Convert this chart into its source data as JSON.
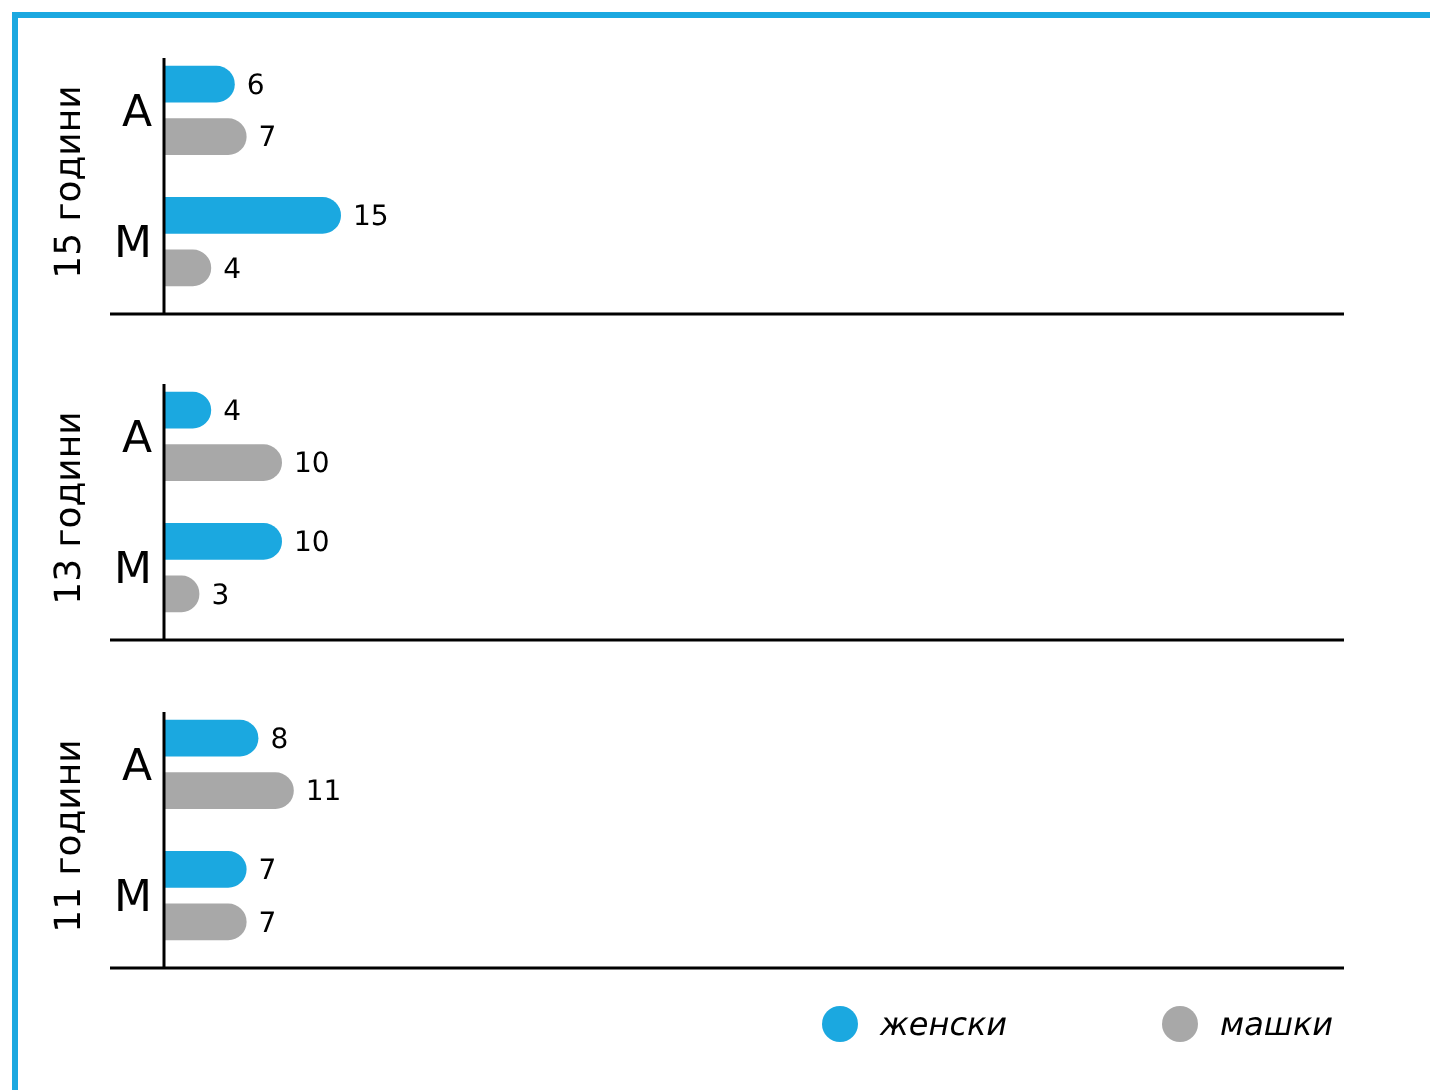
{
  "chart_data": [
    {
      "type": "bar",
      "orientation": "horizontal",
      "ylabel": "15 години",
      "categories": [
        "A",
        "M"
      ],
      "xlim": [
        0,
        100
      ],
      "tick_labels": "y",
      "data_labels": true,
      "legend": false,
      "series": [
        {
          "color": "#1ba8e0",
          "values": [
            6,
            15
          ]
        },
        {
          "color": "#a8a8a8",
          "values": [
            7,
            4
          ]
        }
      ]
    },
    {
      "type": "bar",
      "orientation": "horizontal",
      "ylabel": "13 години",
      "categories": [
        "A",
        "M"
      ],
      "xlim": [
        0,
        100
      ],
      "tick_labels": "y",
      "data_labels": true,
      "legend": false,
      "series": [
        {
          "color": "#1ba8e0",
          "values": [
            4,
            10
          ]
        },
        {
          "color": "#a8a8a8",
          "values": [
            10,
            3
          ]
        }
      ]
    },
    {
      "type": "bar",
      "orientation": "horizontal",
      "ylabel": "11 години",
      "categories": [
        "A",
        "M"
      ],
      "xlim": [
        0,
        100
      ],
      "tick_labels": "y",
      "data_labels": true,
      "legend": "bottom right",
      "series": [
        {
          "name": "женски",
          "color": "#1ba8e0",
          "values": [
            8,
            7
          ]
        },
        {
          "name": "машки",
          "color": "#a8a8a8",
          "values": [
            11,
            7
          ]
        }
      ]
    }
  ]
}
